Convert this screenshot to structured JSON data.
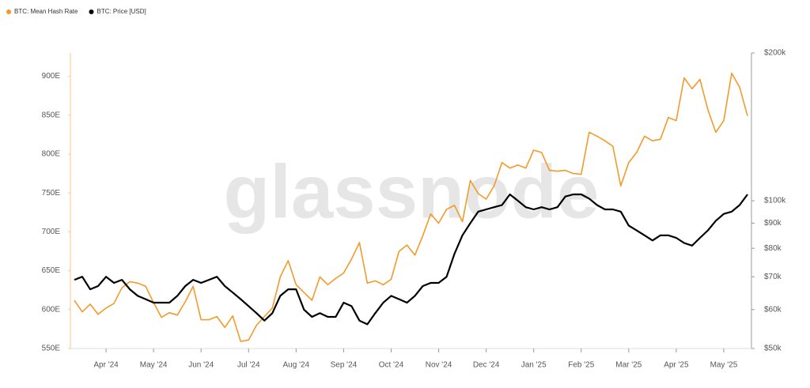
{
  "chart_data": {
    "type": "line",
    "watermark": "glassnode",
    "categories": [
      null,
      null,
      null,
      null,
      "Apr '24",
      null,
      null,
      null,
      null,
      null,
      "May '24",
      null,
      null,
      null,
      null,
      null,
      "Jun '24",
      null,
      null,
      null,
      null,
      null,
      "Jul '24",
      null,
      null,
      null,
      null,
      null,
      "Aug '24",
      null,
      null,
      null,
      null,
      null,
      "Sep '24",
      null,
      null,
      null,
      null,
      null,
      "Oct '24",
      null,
      null,
      null,
      null,
      null,
      "Nov '24",
      null,
      null,
      null,
      null,
      null,
      "Dec '24",
      null,
      null,
      null,
      null,
      null,
      "Jan '25",
      null,
      null,
      null,
      null,
      null,
      "Feb '25",
      null,
      null,
      null,
      null,
      null,
      "Mar '25",
      null,
      null,
      null,
      null,
      null,
      "Apr '25",
      null,
      null,
      null,
      null,
      null,
      "May '25",
      null,
      null,
      null
    ],
    "series": [
      {
        "name": "BTC: Mean Hash Rate",
        "color": "#f39a2b",
        "axis": "y",
        "values": [
          612,
          597,
          607,
          594,
          602,
          608,
          628,
          636,
          634,
          630,
          609,
          590,
          596,
          593,
          610,
          630,
          587,
          587,
          591,
          577,
          592,
          559,
          561,
          580,
          591,
          602,
          642,
          663,
          632,
          622,
          612,
          642,
          632,
          640,
          647,
          665,
          686,
          634,
          637,
          632,
          639,
          675,
          683,
          670,
          695,
          723,
          711,
          729,
          734,
          713,
          766,
          749,
          742,
          759,
          789,
          782,
          786,
          782,
          805,
          802,
          779,
          778,
          779,
          775,
          774,
          828,
          823,
          817,
          810,
          759,
          789,
          802,
          823,
          817,
          819,
          847,
          843,
          898,
          884,
          896,
          857,
          828,
          843,
          904,
          886,
          849
        ]
      },
      {
        "name": "BTC: Price [USD]",
        "color": "#000000",
        "axis": "y2",
        "values": [
          69000,
          70000,
          66000,
          67000,
          70000,
          68000,
          69000,
          66000,
          64000,
          63000,
          62000,
          62000,
          62000,
          64000,
          67000,
          69000,
          68000,
          69000,
          70000,
          67000,
          65000,
          63000,
          61000,
          59000,
          57000,
          59000,
          64000,
          66000,
          66000,
          60000,
          58000,
          59000,
          58000,
          58000,
          62000,
          61000,
          57000,
          56000,
          59000,
          62000,
          64000,
          63000,
          62000,
          64000,
          67000,
          68000,
          68000,
          70000,
          78000,
          85000,
          90000,
          95000,
          96000,
          97000,
          98000,
          103000,
          100000,
          97000,
          96000,
          97000,
          96000,
          97000,
          102000,
          103000,
          103000,
          101000,
          98000,
          96000,
          96000,
          95000,
          89000,
          87000,
          85000,
          83000,
          85000,
          85000,
          84000,
          82000,
          81000,
          84000,
          87000,
          91000,
          94000,
          95000,
          98000,
          103000
        ]
      }
    ],
    "ylim": [
      550,
      930
    ],
    "yticks": [
      {
        "value": 550,
        "label": "550E"
      },
      {
        "value": 600,
        "label": "600E"
      },
      {
        "value": 650,
        "label": "650E"
      },
      {
        "value": 700,
        "label": "700E"
      },
      {
        "value": 750,
        "label": "750E"
      },
      {
        "value": 800,
        "label": "800E"
      },
      {
        "value": 850,
        "label": "850E"
      },
      {
        "value": 900,
        "label": "900E"
      }
    ],
    "y2lim": [
      50000,
      200000
    ],
    "y2log": true,
    "y2ticks": [
      {
        "value": 50000,
        "label": "$50k"
      },
      {
        "value": 60000,
        "label": "$60k"
      },
      {
        "value": 70000,
        "label": "$70k"
      },
      {
        "value": 80000,
        "label": "$80k"
      },
      {
        "value": 90000,
        "label": "$90k"
      },
      {
        "value": 100000,
        "label": "$100k"
      },
      {
        "value": 200000,
        "label": "$200k"
      }
    ],
    "grid": false,
    "legend": "top-left"
  }
}
